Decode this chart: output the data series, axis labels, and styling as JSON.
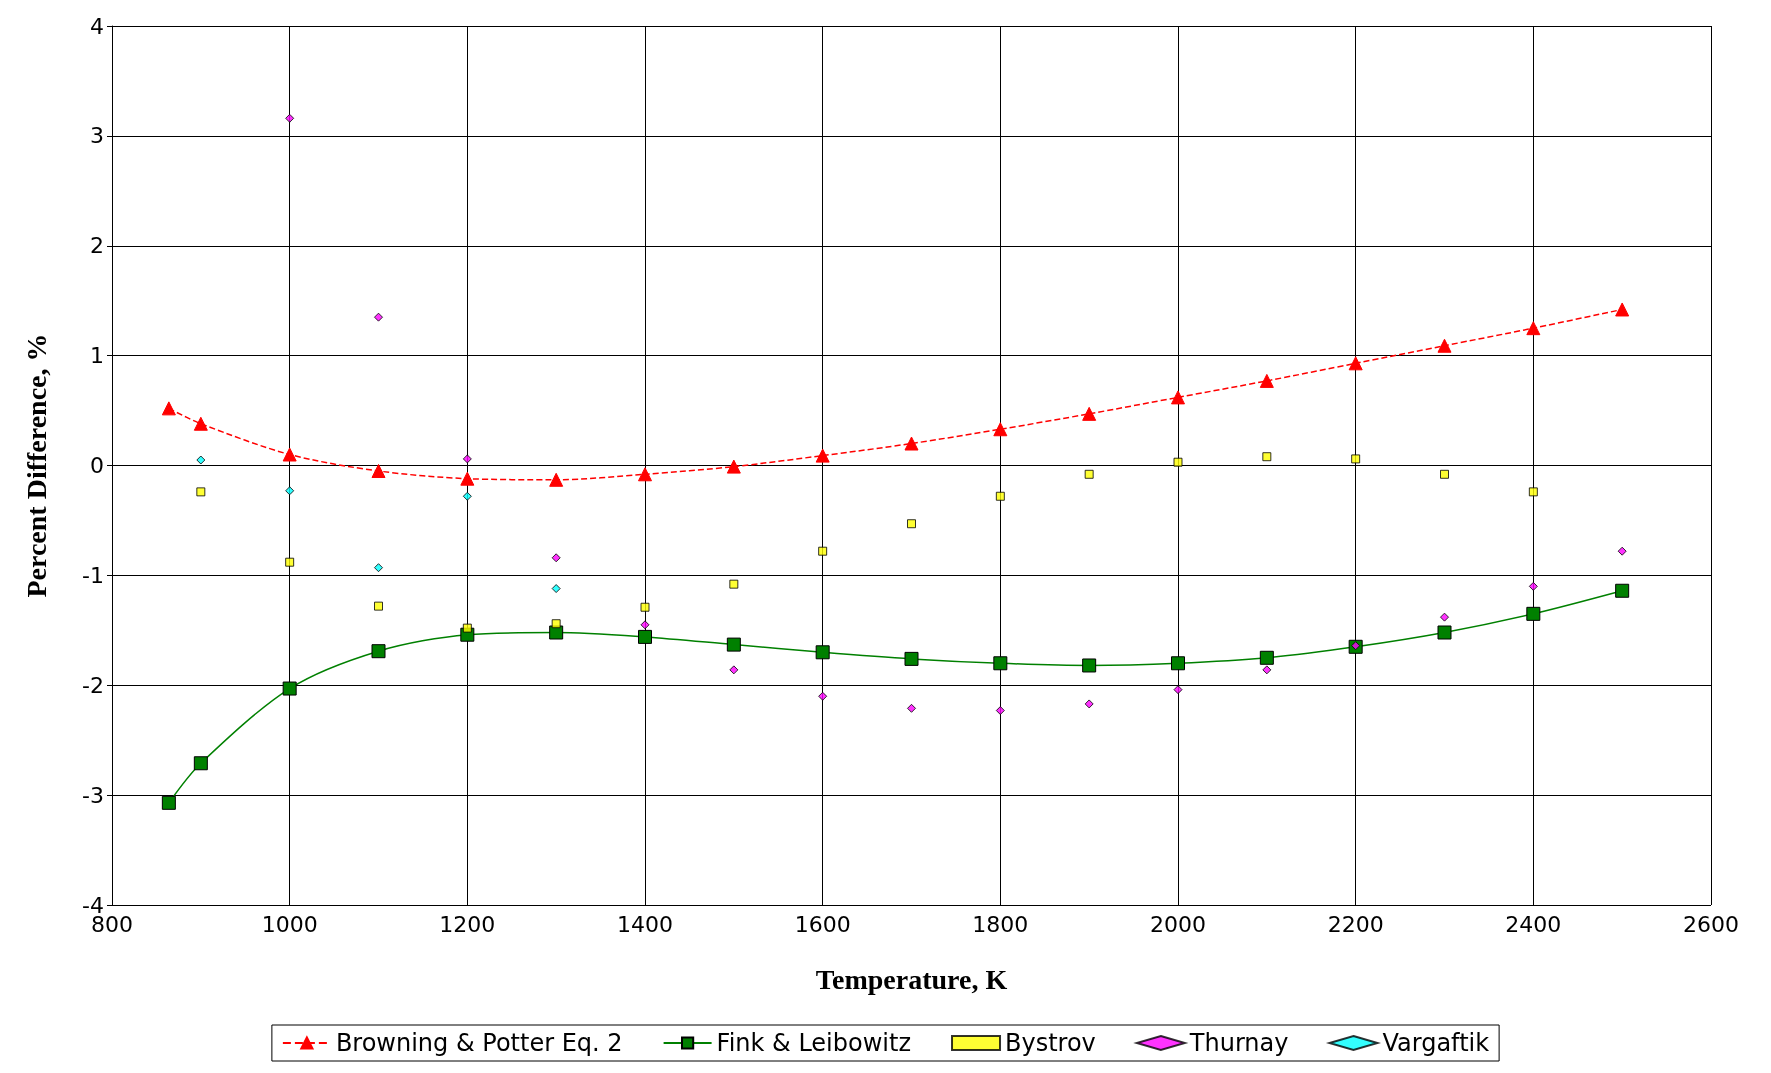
{
  "chart_data": {
    "type": "line",
    "xlabel": "Temperature, K",
    "ylabel": "Percent Difference, %",
    "xlim": [
      800,
      2600
    ],
    "xticks": [
      800,
      1000,
      1200,
      1400,
      1600,
      1800,
      2000,
      2200,
      2400,
      2600
    ],
    "ylim": [
      -4,
      4
    ],
    "yticks": [
      -4,
      -3,
      -2,
      -1,
      0,
      1,
      2,
      3,
      4
    ],
    "grid": true,
    "legend": "bottom",
    "series": [
      {
        "name": "Browning & Potter Eq. 2",
        "type": "line",
        "color": "#ff0000",
        "marker": "triangle",
        "line_style": "dashed",
        "x": [
          864,
          900,
          1000,
          1100,
          1200,
          1300,
          1400,
          1500,
          1600,
          1700,
          1800,
          1900,
          2000,
          2100,
          2200,
          2300,
          2400,
          2500
        ],
        "values": [
          0.52,
          0.38,
          0.1,
          -0.05,
          -0.12,
          -0.13,
          -0.08,
          -0.01,
          0.09,
          0.2,
          0.33,
          0.47,
          0.62,
          0.77,
          0.93,
          1.09,
          1.25,
          1.42
        ]
      },
      {
        "name": "Fink & Leibowitz",
        "type": "line",
        "color": "#008000",
        "marker": "square",
        "line_style": "solid",
        "x": [
          864,
          900,
          1000,
          1100,
          1200,
          1300,
          1400,
          1500,
          1600,
          1700,
          1800,
          1900,
          2000,
          2100,
          2200,
          2300,
          2400,
          2500
        ],
        "values": [
          -3.07,
          -2.71,
          -2.03,
          -1.69,
          -1.54,
          -1.52,
          -1.56,
          -1.63,
          -1.7,
          -1.76,
          -1.8,
          -1.82,
          -1.8,
          -1.75,
          -1.65,
          -1.52,
          -1.35,
          -1.14
        ]
      },
      {
        "name": "Bystrov",
        "type": "scatter",
        "color": "#ffff00",
        "marker": "square",
        "x": [
          900,
          1000,
          1100,
          1200,
          1300,
          1400,
          1500,
          1600,
          1700,
          1800,
          1900,
          2000,
          2100,
          2200,
          2300,
          2400
        ],
        "values": [
          -0.24,
          -0.88,
          -1.28,
          -1.48,
          -1.44,
          -1.29,
          -1.08,
          -0.78,
          -0.53,
          -0.28,
          -0.08,
          0.03,
          0.08,
          0.06,
          -0.08,
          -0.24
        ]
      },
      {
        "name": "Thurnay",
        "type": "scatter",
        "color": "#ff00ff",
        "marker": "diamond",
        "x": [
          1000,
          1100,
          1200,
          1300,
          1400,
          1500,
          1600,
          1700,
          1800,
          1900,
          2000,
          2100,
          2200,
          2300,
          2400,
          2500
        ],
        "values": [
          3.16,
          1.35,
          0.06,
          -0.84,
          -1.45,
          -1.86,
          -2.1,
          -2.21,
          -2.23,
          -2.17,
          -2.04,
          -1.86,
          -1.64,
          -1.38,
          -1.1,
          -0.78
        ]
      },
      {
        "name": "Vargaftik",
        "type": "scatter",
        "color": "#00ffff",
        "marker": "diamond",
        "x": [
          900,
          1000,
          1100,
          1200,
          1300
        ],
        "values": [
          0.05,
          -0.23,
          -0.93,
          -0.28,
          -1.12
        ]
      }
    ]
  }
}
